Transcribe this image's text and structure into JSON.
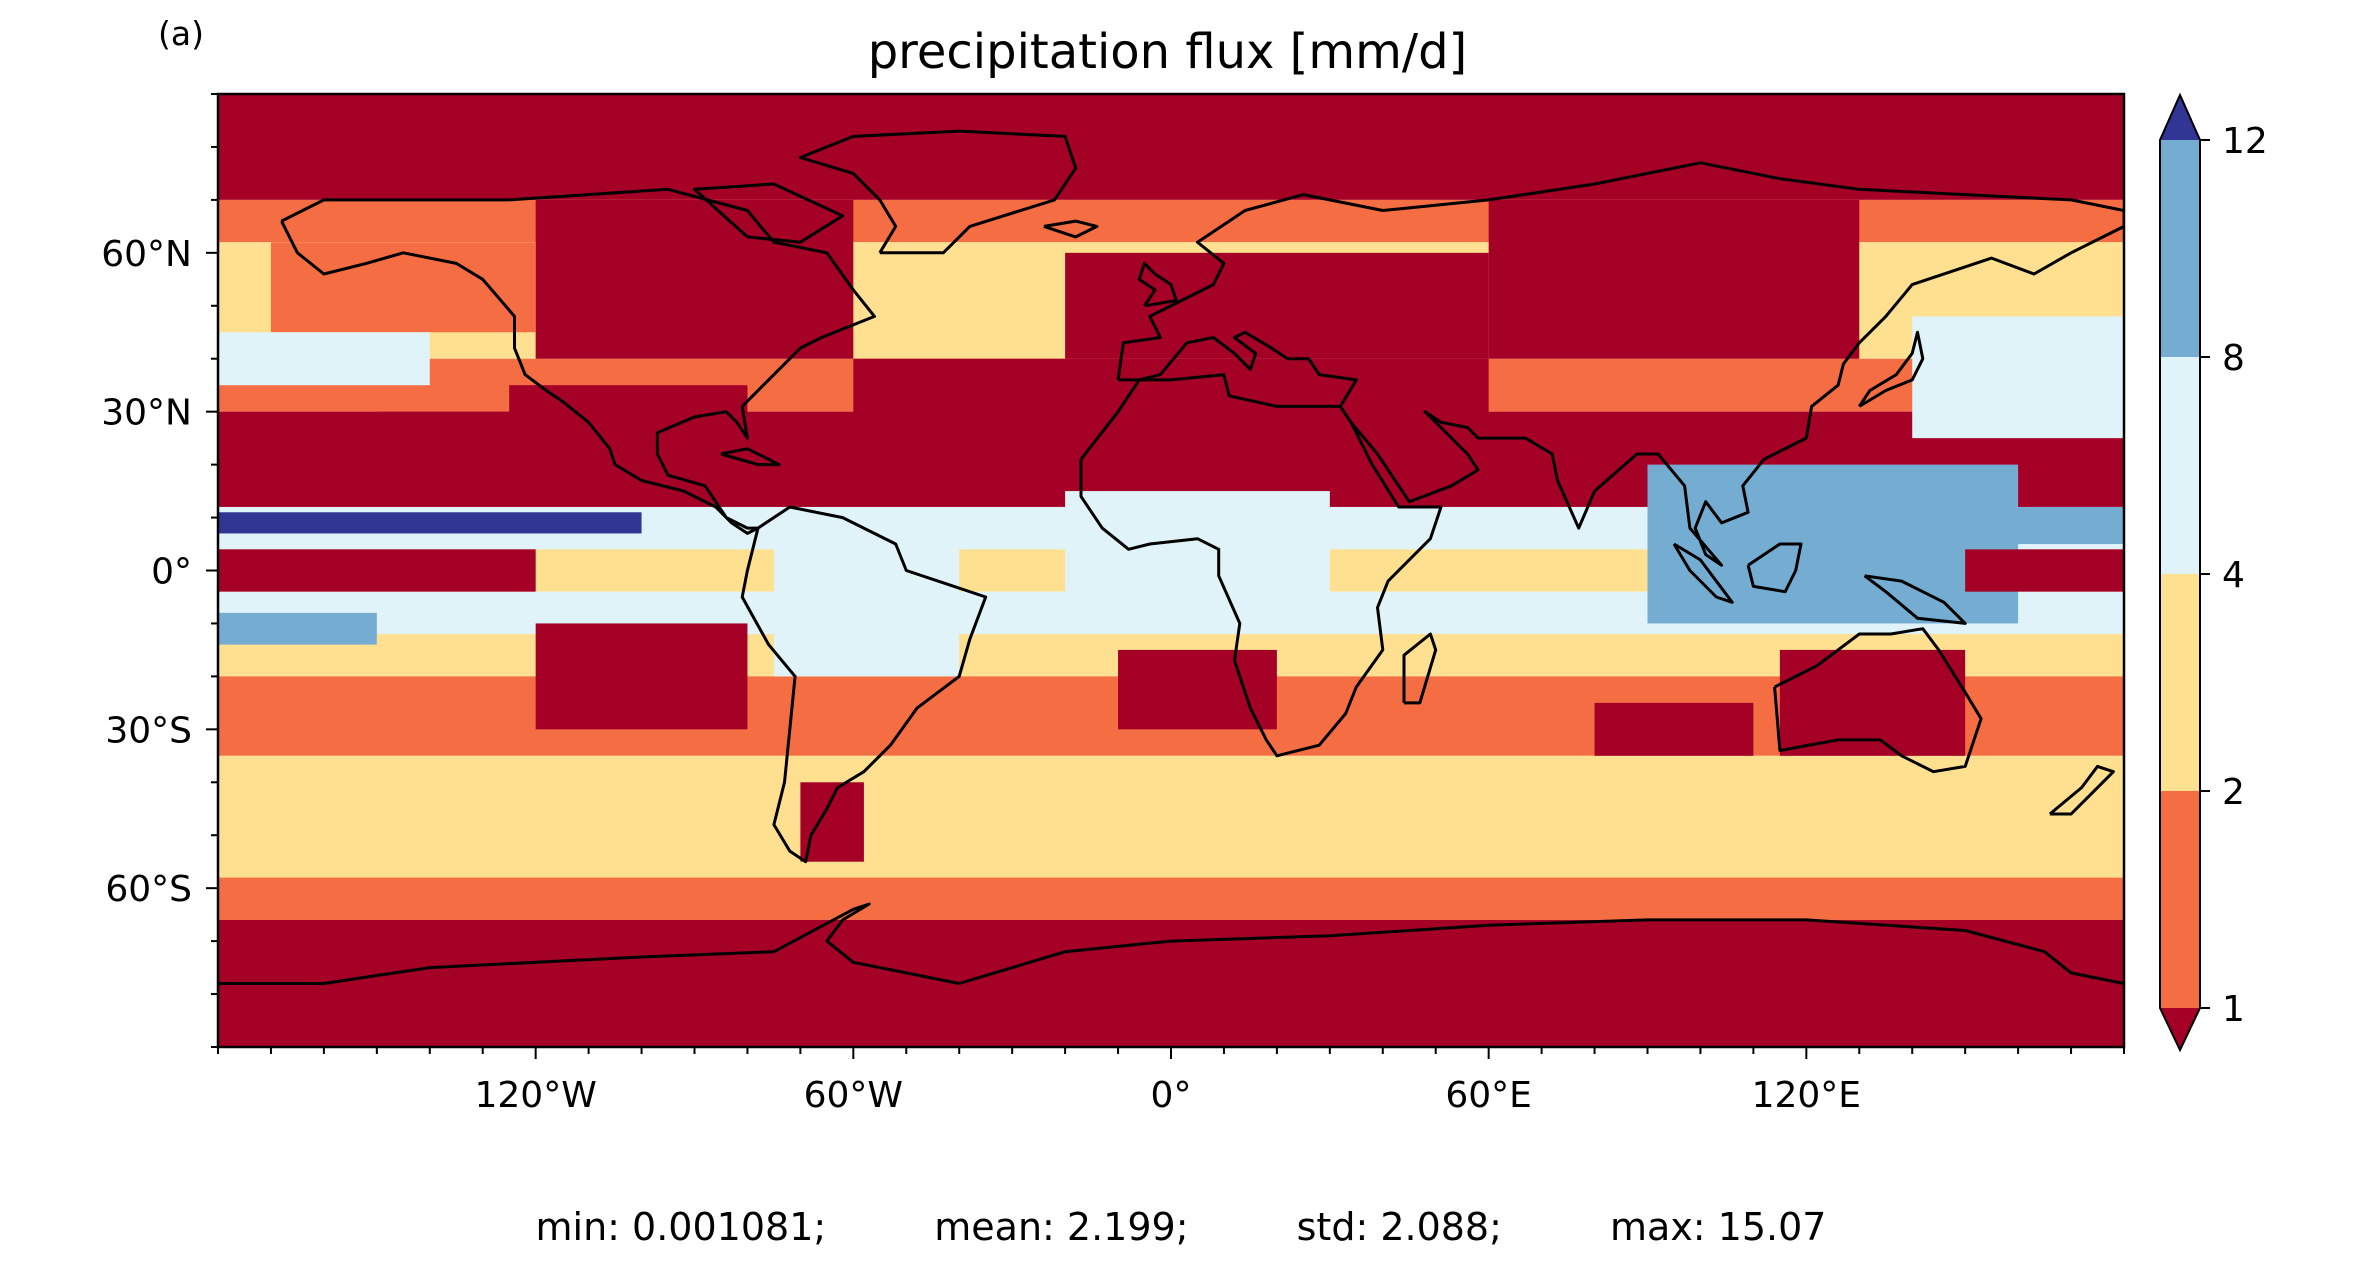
{
  "panel_label": "(a)",
  "title": "precipitation flux [mm/d]",
  "stats": {
    "min": "min: 0.001081;",
    "mean": "mean: 2.199;",
    "std": "std: 2.088;",
    "max": "max: 15.07"
  },
  "map": {
    "projection": "PlateCarree",
    "lon_range": [
      -180,
      180
    ],
    "lat_range": [
      -90,
      90
    ],
    "x_ticks": [
      {
        "lon": -120,
        "label": "120°W"
      },
      {
        "lon": -60,
        "label": "60°W"
      },
      {
        "lon": 0,
        "label": "0°"
      },
      {
        "lon": 60,
        "label": "60°E"
      },
      {
        "lon": 120,
        "label": "120°E"
      }
    ],
    "y_ticks": [
      {
        "lat": 60,
        "label": "60°N"
      },
      {
        "lat": 30,
        "label": "30°N"
      },
      {
        "lat": 0,
        "label": "0°"
      },
      {
        "lat": -30,
        "label": "30°S"
      },
      {
        "lat": -60,
        "label": "60°S"
      }
    ],
    "zones": [
      {
        "lat": [
          70,
          90
        ],
        "level": 0
      },
      {
        "lat": [
          62,
          70
        ],
        "level": 1
      },
      {
        "lat": [
          40,
          62
        ],
        "level": 2
      },
      {
        "lat": [
          30,
          40
        ],
        "level": 1
      },
      {
        "lat": [
          12,
          30
        ],
        "level": 0
      },
      {
        "lat": [
          4,
          12
        ],
        "level": 3
      },
      {
        "lat": [
          -4,
          4
        ],
        "level": 2
      },
      {
        "lat": [
          -12,
          -4
        ],
        "level": 3
      },
      {
        "lat": [
          -20,
          -12
        ],
        "level": 2
      },
      {
        "lat": [
          -35,
          -20
        ],
        "level": 1
      },
      {
        "lat": [
          -58,
          -35
        ],
        "level": 2
      },
      {
        "lat": [
          -66,
          -58
        ],
        "level": 1
      },
      {
        "lat": [
          -90,
          -66
        ],
        "level": 0
      }
    ],
    "regions": [
      {
        "lon": [
          -125,
          -80
        ],
        "lat": [
          15,
          35
        ],
        "level": 0
      },
      {
        "lon": [
          -150,
          -120
        ],
        "lat": [
          15,
          30
        ],
        "level": 0
      },
      {
        "lon": [
          -120,
          -60
        ],
        "lat": [
          40,
          70
        ],
        "level": 0
      },
      {
        "lon": [
          -60,
          60
        ],
        "lat": [
          15,
          40
        ],
        "level": 0
      },
      {
        "lon": [
          -20,
          60
        ],
        "lat": [
          40,
          60
        ],
        "level": 0
      },
      {
        "lon": [
          60,
          130
        ],
        "lat": [
          40,
          70
        ],
        "level": 0
      },
      {
        "lon": [
          -20,
          30
        ],
        "lat": [
          -10,
          15
        ],
        "level": 3
      },
      {
        "lon": [
          -75,
          -40
        ],
        "lat": [
          -20,
          10
        ],
        "level": 3
      },
      {
        "lon": [
          90,
          160
        ],
        "lat": [
          -10,
          20
        ],
        "level": 4
      },
      {
        "lon": [
          140,
          180
        ],
        "lat": [
          5,
          12
        ],
        "level": 4
      },
      {
        "lon": [
          -180,
          -100
        ],
        "lat": [
          7,
          11
        ],
        "level": 5
      },
      {
        "lon": [
          -120,
          -80
        ],
        "lat": [
          -30,
          -10
        ],
        "level": 0
      },
      {
        "lon": [
          -10,
          20
        ],
        "lat": [
          -30,
          -15
        ],
        "level": 0
      },
      {
        "lon": [
          80,
          110
        ],
        "lat": [
          -35,
          -25
        ],
        "level": 0
      },
      {
        "lon": [
          -180,
          -120
        ],
        "lat": [
          -4,
          4
        ],
        "level": 0
      },
      {
        "lon": [
          150,
          180
        ],
        "lat": [
          -4,
          4
        ],
        "level": 0
      },
      {
        "lon": [
          -180,
          -150
        ],
        "lat": [
          -14,
          -8
        ],
        "level": 4
      },
      {
        "lon": [
          115,
          150
        ],
        "lat": [
          -35,
          -15
        ],
        "level": 0
      },
      {
        "lon": [
          -70,
          -58
        ],
        "lat": [
          -55,
          -40
        ],
        "level": 0
      },
      {
        "lon": [
          -170,
          -120
        ],
        "lat": [
          45,
          62
        ],
        "level": 1
      },
      {
        "lon": [
          140,
          180
        ],
        "lat": [
          25,
          48
        ],
        "level": 3
      },
      {
        "lon": [
          -180,
          -140
        ],
        "lat": [
          35,
          45
        ],
        "level": 3
      }
    ]
  },
  "colorbar": {
    "levels": [
      1,
      2,
      4,
      8,
      12
    ],
    "tick_labels": [
      "1",
      "2",
      "4",
      "8",
      "12"
    ],
    "colors": [
      "#a50026",
      "#f46d43",
      "#fee090",
      "#e0f3f8",
      "#74add1",
      "#313695"
    ],
    "extend": "both"
  }
}
